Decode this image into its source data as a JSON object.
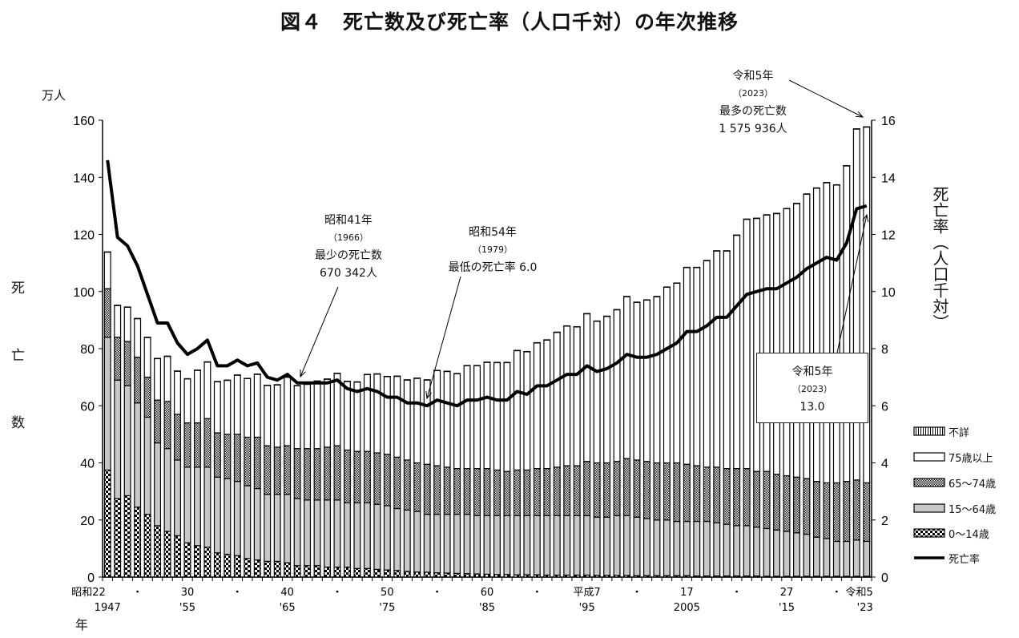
{
  "title": "図４　死亡数及び死亡率（人口千対）の年次推移",
  "chart_data": {
    "type": "bar+line",
    "title": "図４　死亡数及び死亡率（人口千対）の年次推移",
    "y_left": {
      "unit": "万人",
      "label": "死亡数",
      "range": [
        0,
        160
      ],
      "ticks": [
        0,
        20,
        40,
        60,
        80,
        100,
        120,
        140,
        160
      ]
    },
    "y_right": {
      "label": "死亡率（人口千対）",
      "range": [
        0,
        16
      ],
      "ticks": [
        0,
        2,
        4,
        6,
        8,
        10,
        12,
        14,
        16
      ]
    },
    "x_label": "年",
    "x_tick_labels": [
      {
        "year": 1947,
        "era": "昭和22",
        "western": "1947"
      },
      {
        "year": 1950,
        "era": "・",
        "western": ""
      },
      {
        "year": 1955,
        "era": "30",
        "western": "'55"
      },
      {
        "year": 1960,
        "era": "・",
        "western": ""
      },
      {
        "year": 1965,
        "era": "40",
        "western": "'65"
      },
      {
        "year": 1970,
        "era": "・",
        "western": ""
      },
      {
        "year": 1975,
        "era": "50",
        "western": "'75"
      },
      {
        "year": 1980,
        "era": "・",
        "western": ""
      },
      {
        "year": 1985,
        "era": "60",
        "western": "'85"
      },
      {
        "year": 1990,
        "era": "・",
        "western": ""
      },
      {
        "year": 1995,
        "era": "平成7",
        "western": "'95"
      },
      {
        "year": 2000,
        "era": "・",
        "western": ""
      },
      {
        "year": 2005,
        "era": "17",
        "western": "2005"
      },
      {
        "year": 2010,
        "era": "・",
        "western": ""
      },
      {
        "year": 2015,
        "era": "27",
        "western": "'15"
      },
      {
        "year": 2020,
        "era": "・",
        "western": ""
      },
      {
        "year": 2023,
        "era": "令和5",
        "western": "'23"
      }
    ],
    "years": [
      1947,
      1948,
      1949,
      1950,
      1951,
      1952,
      1953,
      1954,
      1955,
      1956,
      1957,
      1958,
      1959,
      1960,
      1961,
      1962,
      1963,
      1964,
      1965,
      1966,
      1967,
      1968,
      1969,
      1970,
      1971,
      1972,
      1973,
      1974,
      1975,
      1976,
      1977,
      1978,
      1979,
      1980,
      1981,
      1982,
      1983,
      1984,
      1985,
      1986,
      1987,
      1988,
      1989,
      1990,
      1991,
      1992,
      1993,
      1994,
      1995,
      1996,
      1997,
      1998,
      1999,
      2000,
      2001,
      2002,
      2003,
      2004,
      2005,
      2006,
      2007,
      2008,
      2009,
      2010,
      2011,
      2012,
      2013,
      2014,
      2015,
      2016,
      2017,
      2018,
      2019,
      2020,
      2021,
      2022,
      2023
    ],
    "bar_series": [
      {
        "name": "0～14歳",
        "color": "checker-coarse",
        "values": [
          37.5,
          27.5,
          28.5,
          24.5,
          22,
          18,
          16,
          14.5,
          12,
          11,
          10.5,
          8.5,
          8,
          7.5,
          6.5,
          6,
          5.5,
          5.5,
          5,
          4,
          4,
          4,
          3.5,
          3.5,
          3.5,
          3,
          3,
          2.7,
          2.5,
          2.3,
          2,
          1.8,
          1.7,
          1.5,
          1.4,
          1.3,
          1.2,
          1.1,
          1,
          0.9,
          0.9,
          0.8,
          0.8,
          0.8,
          0.7,
          0.7,
          0.7,
          0.7,
          0.7,
          0.6,
          0.6,
          0.6,
          0.6,
          0.5,
          0.5,
          0.5,
          0.5,
          0.5,
          0.5,
          0.4,
          0.4,
          0.4,
          0.4,
          0.4,
          0.4,
          0.4,
          0.3,
          0.3,
          0.3,
          0.3,
          0.3,
          0.3,
          0.3,
          0.3,
          0.3,
          0.3,
          0.3
        ]
      },
      {
        "name": "15～64歳",
        "color": "#c8c8c8",
        "values": [
          46.5,
          41.5,
          38.5,
          36.5,
          34,
          29,
          29,
          26.5,
          26.5,
          27.5,
          28,
          26.5,
          26.5,
          26,
          25.5,
          25,
          23.5,
          23.5,
          24,
          23.5,
          23,
          23,
          23.5,
          23.5,
          22.5,
          23,
          23,
          22.8,
          22.5,
          21.7,
          21.5,
          21.2,
          20.3,
          20.5,
          20.6,
          20.7,
          20.8,
          20.4,
          20.5,
          20.6,
          20.6,
          20.7,
          20.7,
          20.7,
          20.8,
          20.8,
          20.8,
          20.8,
          20.8,
          20.4,
          20.4,
          20.9,
          20.9,
          20.5,
          20,
          19.5,
          19.5,
          19,
          19,
          19.1,
          19.1,
          18.6,
          18.1,
          17.6,
          17.6,
          17.1,
          16.7,
          16.2,
          15.7,
          15.2,
          14.7,
          13.7,
          13.2,
          12.2,
          12.2,
          12.7,
          12.2
        ]
      },
      {
        "name": "65～74歳",
        "color": "checker-fine",
        "values": [
          17,
          15,
          15.5,
          16,
          14,
          15,
          16.5,
          16,
          15.5,
          15.5,
          17,
          15.5,
          15.5,
          16.5,
          17,
          18,
          17,
          16.5,
          17,
          17.5,
          18,
          18,
          18.5,
          19,
          18.5,
          18,
          18,
          18,
          18,
          18,
          17.5,
          17,
          17.5,
          17,
          16.5,
          16,
          16,
          16.5,
          16.5,
          16,
          15.5,
          16,
          16,
          16.5,
          16.5,
          17,
          17.5,
          17.5,
          19,
          19,
          19,
          19,
          20,
          20,
          20,
          20,
          20,
          20.5,
          20,
          19.5,
          19,
          19.5,
          19.5,
          20,
          20,
          19.5,
          20,
          19.5,
          19.5,
          19.5,
          19.5,
          19.5,
          19.5,
          20.5,
          21,
          21,
          20.5
        ]
      },
      {
        "name": "75歳以上",
        "color": "#ffffff",
        "values": [
          12.8,
          11.1,
          12,
          13.5,
          13.9,
          14.5,
          15.8,
          15.1,
          15.4,
          18.4,
          19.8,
          17.9,
          18.9,
          20.7,
          20.5,
          22,
          21.1,
          21.8,
          24,
          22,
          22.5,
          23.6,
          23.8,
          25.3,
          24,
          24.3,
          26.9,
          27.6,
          27.2,
          28.3,
          28,
          29.6,
          29.5,
          33.3,
          33.5,
          33.2,
          36,
          36,
          37.2,
          37.6,
          38.1,
          41.8,
          41.4,
          44,
          45,
          47.2,
          48.9,
          48.6,
          51.7,
          49.6,
          51.3,
          53.1,
          56.7,
          55.2,
          56.5,
          58.2,
          61.5,
          62.9,
          68.9,
          69.4,
          72.3,
          75.7,
          76.2,
          81.7,
          87.3,
          88.6,
          89.8,
          91.3,
          93.5,
          95.8,
          99.6,
          102.7,
          105.1,
          104.3,
          110.5,
          122.9,
          124.6
        ]
      },
      {
        "name": "不詳",
        "color": "vertical-stripes",
        "values": [
          0.1,
          0.1,
          0.1,
          0.1,
          0.1,
          0.1,
          0.1,
          0.1,
          0.1,
          0.1,
          0.1,
          0.1,
          0.1,
          0.1,
          0.1,
          0.1,
          0.1,
          0.1,
          0.1,
          0.1,
          0.1,
          0.1,
          0.1,
          0.1,
          0.1,
          0.1,
          0.1,
          0.1,
          0.1,
          0.1,
          0.1,
          0.1,
          0.1,
          0.1,
          0.1,
          0.1,
          0.1,
          0.1,
          0.1,
          0.1,
          0.1,
          0.1,
          0.1,
          0.1,
          0.1,
          0.1,
          0.1,
          0.1,
          0.1,
          0.1,
          0.1,
          0.1,
          0.1,
          0.1,
          0.1,
          0.1,
          0.1,
          0.1,
          0.1,
          0.1,
          0.1,
          0.1,
          0.1,
          0.1,
          0.1,
          0.1,
          0.1,
          0.1,
          0.1,
          0.1,
          0.1,
          0.1,
          0.1,
          0.1,
          0.1,
          0.1,
          0.1
        ]
      }
    ],
    "line_series": {
      "name": "死亡率",
      "color": "#000000",
      "axis": "right",
      "values": [
        14.6,
        11.9,
        11.6,
        10.9,
        9.9,
        8.9,
        8.9,
        8.2,
        7.8,
        8.0,
        8.3,
        7.4,
        7.4,
        7.6,
        7.4,
        7.5,
        7.0,
        6.9,
        7.1,
        6.8,
        6.8,
        6.8,
        6.8,
        6.9,
        6.6,
        6.5,
        6.6,
        6.5,
        6.3,
        6.3,
        6.1,
        6.1,
        6.0,
        6.2,
        6.1,
        6.0,
        6.2,
        6.2,
        6.3,
        6.2,
        6.2,
        6.5,
        6.4,
        6.7,
        6.7,
        6.9,
        7.1,
        7.1,
        7.4,
        7.2,
        7.3,
        7.5,
        7.8,
        7.7,
        7.7,
        7.8,
        8.0,
        8.2,
        8.6,
        8.6,
        8.8,
        9.1,
        9.1,
        9.5,
        9.9,
        10.0,
        10.1,
        10.1,
        10.3,
        10.5,
        10.8,
        11.0,
        11.2,
        11.1,
        11.7,
        12.9,
        13.0
      ]
    },
    "legend": {
      "placement": "right",
      "items": [
        "不詳",
        "75歳以上",
        "65～74歳",
        "15～64歳",
        "0～14歳",
        "死亡率"
      ]
    },
    "annotations": {
      "min_deaths": {
        "era": "昭和41年",
        "year": "（1966）",
        "label": "最少の死亡数",
        "value": "670 342人"
      },
      "min_rate": {
        "era": "昭和54年",
        "year": "（1979）",
        "label": "最低の死亡率 6.0"
      },
      "max_deaths": {
        "era": "令和5年",
        "year": "（2023）",
        "label": "最多の死亡数",
        "value": "1 575 936人"
      },
      "latest_rate": {
        "era": "令和5年",
        "year": "（2023）",
        "value": "13.0"
      }
    }
  }
}
